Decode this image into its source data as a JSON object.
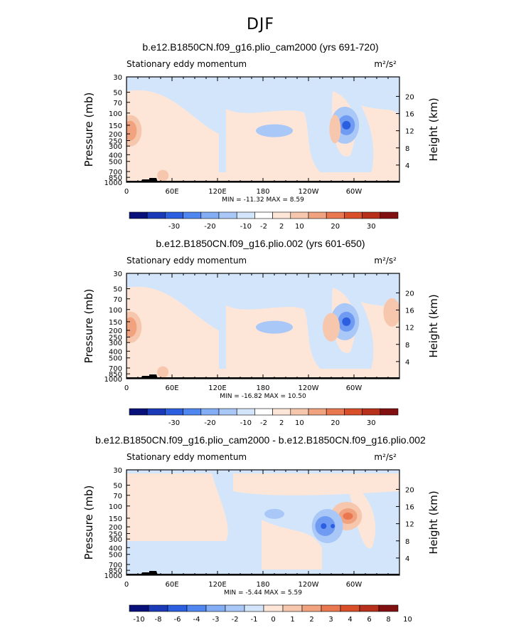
{
  "page": {
    "title": "DJF"
  },
  "panels": [
    {
      "title": "b.e12.B1850CN.f09_g16.plio_cam2000 (yrs 691-720)",
      "subtitle_left": "Stationary eddy momentum",
      "units": "m²/s²",
      "stats": "MIN =  -11.32   MAX =    8.59",
      "colorbar_labels": [
        "-30",
        "-20",
        "-10",
        "-2",
        "2",
        "10",
        "20",
        "30"
      ]
    },
    {
      "title": "b.e12.B1850CN.f09_g16.plio.002 (yrs 601-650)",
      "subtitle_left": "Stationary eddy momentum",
      "units": "m²/s²",
      "stats": "MIN =  -16.82   MAX =   10.50",
      "colorbar_labels": [
        "-30",
        "-20",
        "-10",
        "-2",
        "2",
        "10",
        "20",
        "30"
      ]
    },
    {
      "title": "b.e12.B1850CN.f09_g16.plio_cam2000 - b.e12.B1850CN.f09_g16.plio.002",
      "subtitle_left": "Stationary eddy momentum",
      "units": "m²/s²",
      "stats": "MIN =   -5.44   MAX =    5.59",
      "colorbar_labels": [
        "-10",
        "-8",
        "-6",
        "-4",
        "-3",
        "-2",
        "-1",
        "0",
        "1",
        "2",
        "3",
        "4",
        "6",
        "8",
        "10"
      ]
    }
  ],
  "axes": {
    "ylabel_left": "Pressure  (mb)",
    "ylabel_right": "Height  (km)",
    "pressure_ticks": [
      "30",
      "50",
      "70",
      "100",
      "150",
      "200",
      "250",
      "300",
      "400",
      "500",
      "700",
      "850",
      "1000"
    ],
    "height_ticks": [
      "20",
      "16",
      "12",
      "8",
      "4"
    ],
    "x_ticks": [
      "0",
      "60E",
      "120E",
      "180",
      "120W",
      "60W"
    ]
  },
  "colors": {
    "colorbar_full": [
      "#08107a",
      "#1a3ab8",
      "#2b5fe0",
      "#4f86f0",
      "#83aef5",
      "#a9c8f7",
      "#d3e5fb",
      "#ffffff",
      "#fde6d8",
      "#f7c7ad",
      "#f1a27f",
      "#e9774f",
      "#d94f2a",
      "#b7301b",
      "#821010"
    ],
    "colorbar_diff": [
      "#08107a",
      "#1a3ab8",
      "#2b5fe0",
      "#4f86f0",
      "#83aef5",
      "#a9c8f7",
      "#d3e5fb",
      "#fde6d8",
      "#f7c7ad",
      "#f1a27f",
      "#e9774f",
      "#d94f2a",
      "#b7301b",
      "#821010"
    ],
    "light_blue": "#d3e5fb",
    "light_peach": "#fde6d8",
    "mid_blue": "#a9c8f7",
    "blue": "#6f9bf2",
    "dark_blue": "#2b5fe0",
    "salmon": "#f7c7ad",
    "orange": "#f1a27f",
    "red": "#e9774f"
  },
  "chart_data": [
    {
      "type": "heatmap",
      "title": "b.e12.B1850CN.f09_g16.plio_cam2000 (yrs 691-720)",
      "field": "Stationary eddy momentum",
      "units": "m²/s²",
      "x_range": [
        "0",
        "360 (0)"
      ],
      "y_range_mb": [
        1000,
        30
      ],
      "log_pressure_axis": true,
      "min": -11.32,
      "max": 8.59,
      "contour_levels": [
        -30,
        -20,
        -10,
        -2,
        2,
        10,
        20,
        30
      ],
      "features": [
        {
          "lon": 290,
          "p_mb": 150,
          "sign": "negative",
          "approx": -11
        },
        {
          "lon": 5,
          "p_mb": 180,
          "sign": "positive",
          "approx": 6
        },
        {
          "lon": 195,
          "p_mb": 180,
          "sign": "negative",
          "approx": -4
        },
        {
          "lon": 275,
          "p_mb": 170,
          "sign": "positive",
          "approx": 3
        }
      ]
    },
    {
      "type": "heatmap",
      "title": "b.e12.B1850CN.f09_g16.plio.002 (yrs 601-650)",
      "field": "Stationary eddy momentum",
      "units": "m²/s²",
      "x_range": [
        "0",
        "360 (0)"
      ],
      "y_range_mb": [
        1000,
        30
      ],
      "log_pressure_axis": true,
      "min": -16.82,
      "max": 10.5,
      "contour_levels": [
        -30,
        -20,
        -10,
        -2,
        2,
        10,
        20,
        30
      ],
      "features": [
        {
          "lon": 290,
          "p_mb": 150,
          "sign": "negative",
          "approx": -16
        },
        {
          "lon": 5,
          "p_mb": 160,
          "sign": "positive",
          "approx": 7
        },
        {
          "lon": 270,
          "p_mb": 180,
          "sign": "positive",
          "approx": 10
        },
        {
          "lon": 195,
          "p_mb": 180,
          "sign": "negative",
          "approx": -4
        }
      ]
    },
    {
      "type": "heatmap",
      "title": "b.e12.B1850CN.f09_g16.plio_cam2000 - b.e12.B1850CN.f09_g16.plio.002",
      "field": "Stationary eddy momentum",
      "units": "m²/s²",
      "x_range": [
        "0",
        "360 (0)"
      ],
      "y_range_mb": [
        1000,
        30
      ],
      "log_pressure_axis": true,
      "min": -5.44,
      "max": 5.59,
      "contour_levels": [
        -10,
        -8,
        -6,
        -4,
        -3,
        -2,
        -1,
        0,
        1,
        2,
        3,
        4,
        6,
        8,
        10
      ],
      "features": [
        {
          "lon": 290,
          "p_mb": 140,
          "sign": "positive",
          "approx": 5.5
        },
        {
          "lon": 270,
          "p_mb": 190,
          "sign": "negative",
          "approx": -5
        }
      ]
    }
  ]
}
